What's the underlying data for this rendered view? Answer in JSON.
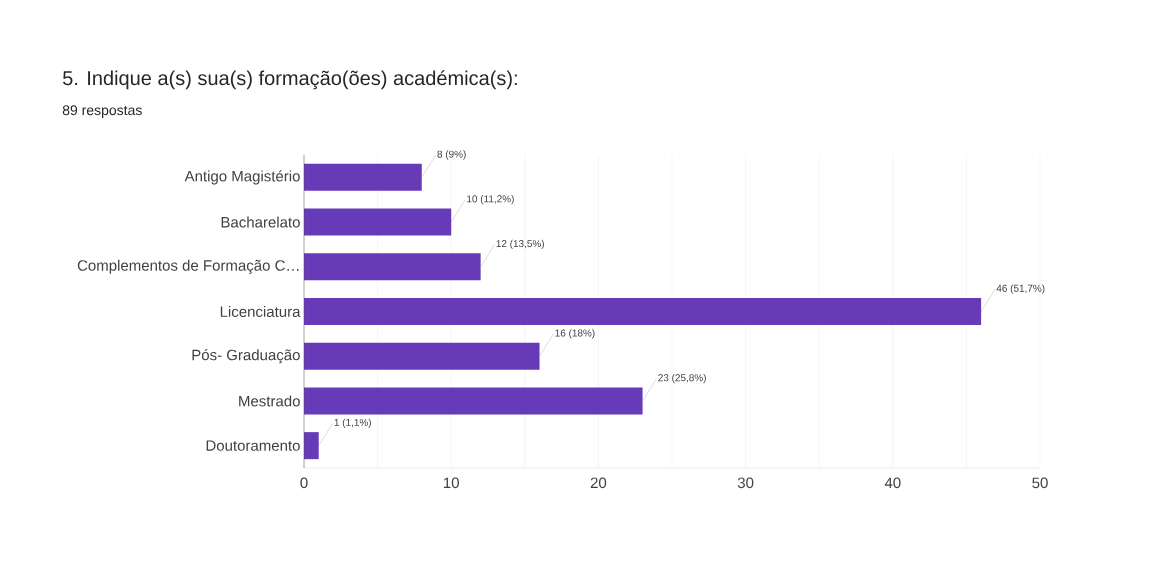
{
  "chart_data": {
    "type": "bar",
    "orientation": "horizontal",
    "title": "5. Indique a(s) sua(s) formação(ões) académica(s):",
    "subtitle": "89 respostas",
    "categories": [
      "Antigo Magistério",
      "Bacharelato",
      "Complementos de Formação C…",
      "Licenciatura",
      "Pós- Graduação",
      "Mestrado",
      "Doutoramento"
    ],
    "values": [
      8,
      10,
      12,
      46,
      16,
      23,
      1
    ],
    "value_labels": [
      "8 (9%)",
      "10 (11,2%)",
      "12 (13,5%)",
      "46 (51,7%)",
      "16 (18%)",
      "23 (25,8%)",
      "1 (1,1%)"
    ],
    "color": "#673ab7",
    "xlim": [
      0,
      50
    ],
    "xticks": [
      0,
      {
        "value": 5,
        "label": null
      },
      10,
      {
        "value": 15,
        "label": null
      },
      20,
      {
        "value": 25,
        "label": null
      },
      30,
      {
        "value": 35,
        "label": null
      },
      40,
      {
        "value": 45,
        "label": null
      },
      50
    ],
    "grid": "x"
  }
}
